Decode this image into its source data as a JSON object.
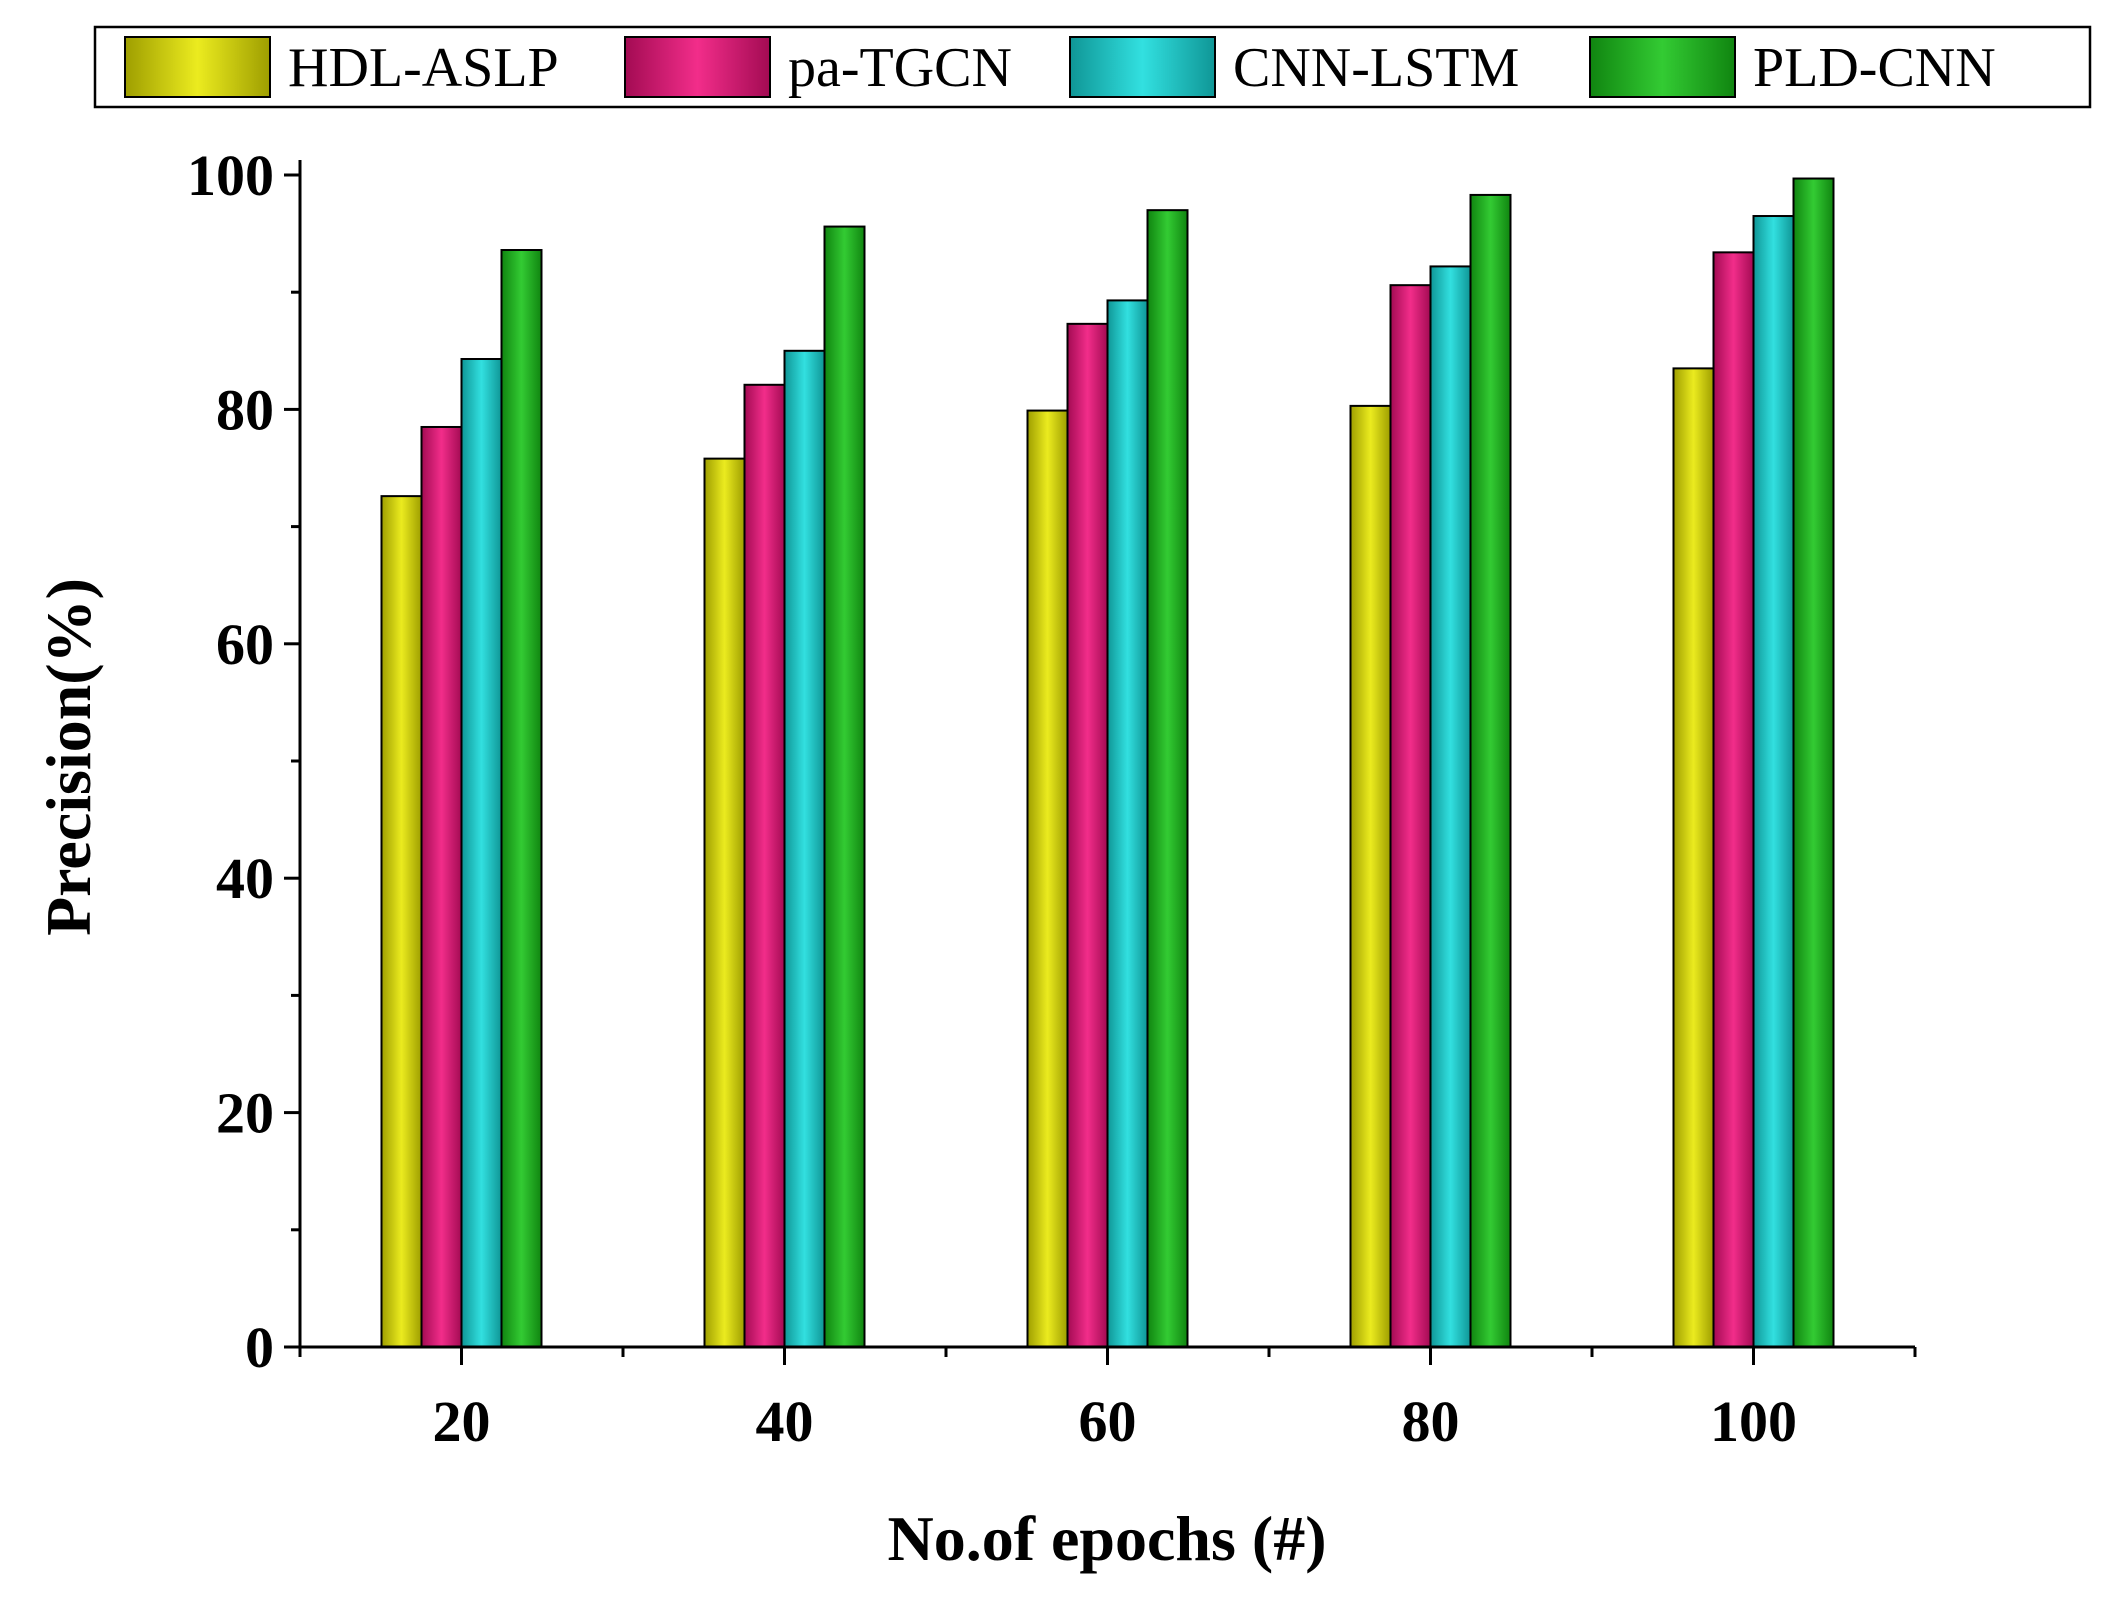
{
  "chart_data": {
    "type": "bar",
    "title": "",
    "xlabel": "No.of epochs (#)",
    "ylabel": "Precision(%)",
    "categories": [
      "20",
      "40",
      "60",
      "80",
      "100"
    ],
    "ylim": [
      0,
      100
    ],
    "yticks": [
      0,
      20,
      40,
      60,
      80,
      100
    ],
    "legend_position": "top",
    "series": [
      {
        "name": "HDL-ASLP",
        "color": "#e8e800",
        "values": [
          72.6,
          75.8,
          79.9,
          80.3,
          83.5
        ]
      },
      {
        "name": "pa-TGCN",
        "color": "#f0107a",
        "values": [
          78.5,
          82.1,
          87.3,
          90.6,
          93.4
        ]
      },
      {
        "name": "CNN-LSTM",
        "color": "#16dcdc",
        "values": [
          84.3,
          85.0,
          89.3,
          92.2,
          96.5
        ]
      },
      {
        "name": "PLD-CNN",
        "color": "#17c417",
        "values": [
          93.6,
          95.6,
          97.0,
          98.3,
          99.7
        ]
      }
    ]
  }
}
